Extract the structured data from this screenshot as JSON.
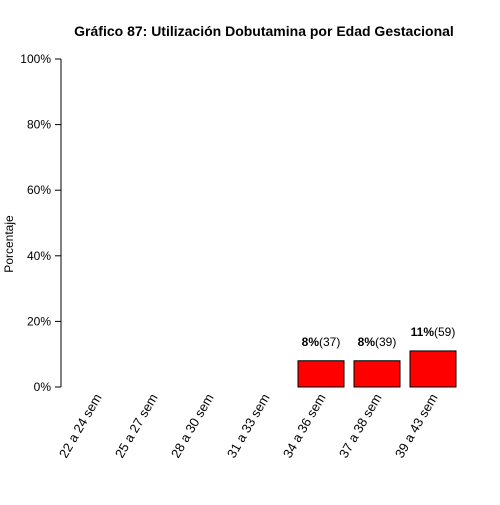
{
  "chart_data": {
    "type": "bar",
    "title": "Gráfico 87: Utilización Dobutamina por  Edad Gestacional",
    "xlabel": "",
    "ylabel": "Porcentaje",
    "ylim": [
      0,
      100
    ],
    "yticks": [
      "0%",
      "20%",
      "40%",
      "60%",
      "80%",
      "100%"
    ],
    "categories": [
      "22 a 24 sem",
      "25 a 27 sem",
      "28 a 30 sem",
      "31 a 33 sem",
      "34 a 36 sem",
      "37 a 38 sem",
      "39 a 43 sem"
    ],
    "values": [
      0,
      0,
      0,
      0,
      8,
      8,
      11
    ],
    "data_labels": [
      {
        "pct": "",
        "n": ""
      },
      {
        "pct": "",
        "n": ""
      },
      {
        "pct": "",
        "n": ""
      },
      {
        "pct": "",
        "n": ""
      },
      {
        "pct": "8%",
        "n": "(37)"
      },
      {
        "pct": "8%",
        "n": "(39)"
      },
      {
        "pct": "11%",
        "n": "(59)"
      }
    ],
    "bar_color": "#ff0000",
    "grid": false,
    "legend": "none"
  }
}
